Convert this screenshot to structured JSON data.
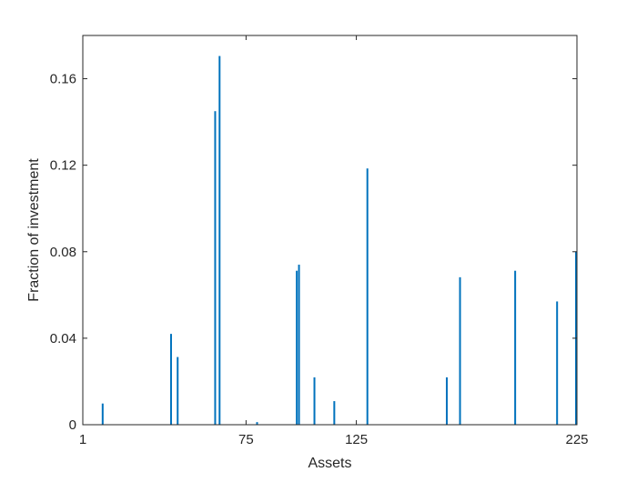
{
  "chart_data": {
    "type": "bar",
    "xlabel": "Assets",
    "ylabel": "Fraction of investment",
    "xlim": [
      1,
      225
    ],
    "ylim": [
      0,
      0.18
    ],
    "xticks": [
      1,
      75,
      125,
      225
    ],
    "xtick_labels": [
      "1",
      "75",
      "125",
      "225"
    ],
    "yticks": [
      0,
      0.04,
      0.08,
      0.12,
      0.16
    ],
    "ytick_labels": [
      "0",
      "0.04",
      "0.08",
      "0.12",
      "0.16"
    ],
    "grid": false,
    "box": true,
    "bar_color": "#0072BD",
    "bars": [
      {
        "x": 10,
        "value": 0.0098
      },
      {
        "x": 41,
        "value": 0.042
      },
      {
        "x": 44,
        "value": 0.0313
      },
      {
        "x": 61,
        "value": 0.145
      },
      {
        "x": 63,
        "value": 0.1705
      },
      {
        "x": 80,
        "value": 0.0012
      },
      {
        "x": 98,
        "value": 0.0712
      },
      {
        "x": 99,
        "value": 0.074
      },
      {
        "x": 106,
        "value": 0.0219
      },
      {
        "x": 115,
        "value": 0.0109
      },
      {
        "x": 130,
        "value": 0.1185
      },
      {
        "x": 166,
        "value": 0.0219
      },
      {
        "x": 172,
        "value": 0.0682
      },
      {
        "x": 197,
        "value": 0.0712
      },
      {
        "x": 216,
        "value": 0.057
      },
      {
        "x": 225,
        "value": 0.08
      }
    ]
  }
}
